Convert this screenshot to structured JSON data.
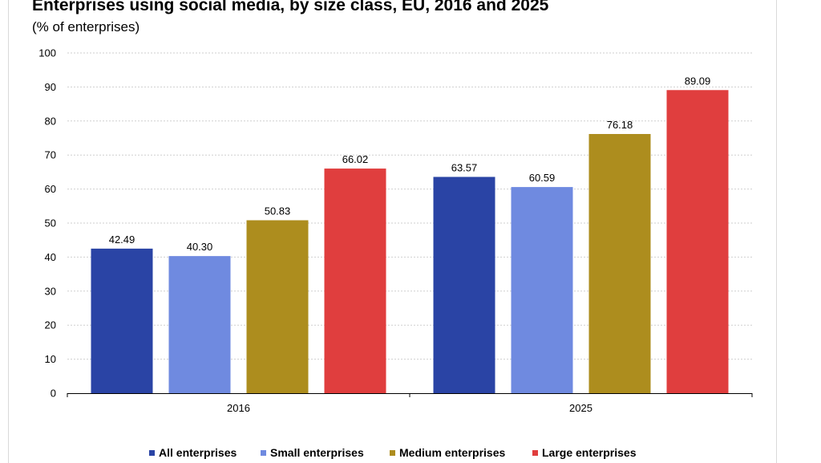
{
  "chart_data": {
    "type": "bar",
    "title": "Enterprises using social media, by size class, EU, 2016 and 2025",
    "subtitle": "(% of enterprises)",
    "categories": [
      "2016",
      "2025"
    ],
    "series": [
      {
        "name": "All enterprises",
        "color": "#2a44a5",
        "values": [
          42.49,
          63.57
        ],
        "labels": [
          "42.49",
          "63.57"
        ]
      },
      {
        "name": "Small enterprises",
        "color": "#6f8ae0",
        "values": [
          40.3,
          60.59
        ],
        "labels": [
          "40.30",
          "60.59"
        ]
      },
      {
        "name": "Medium enterprises",
        "color": "#ad8d1e",
        "values": [
          50.83,
          76.18
        ],
        "labels": [
          "50.83",
          "76.18"
        ]
      },
      {
        "name": "Large enterprises",
        "color": "#e03e3e",
        "values": [
          66.02,
          89.09
        ],
        "labels": [
          "66.02",
          "89.09"
        ]
      }
    ],
    "ylim": [
      0,
      100
    ],
    "yticks": [
      0,
      10,
      20,
      30,
      40,
      50,
      60,
      70,
      80,
      90,
      100
    ],
    "grid": true,
    "legend_position": "bottom"
  }
}
